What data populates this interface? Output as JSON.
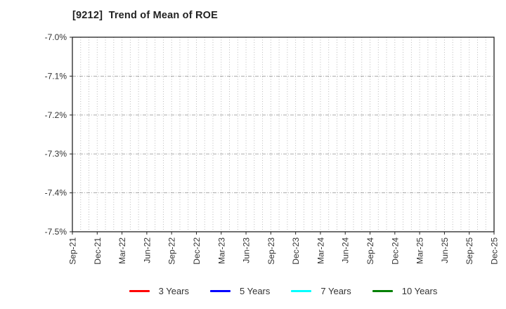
{
  "chart_data": {
    "type": "line",
    "title": "[9212]  Trend of Mean of ROE",
    "ylabel": "",
    "xlabel": "",
    "y_tick_labels": [
      "-7.0%",
      "-7.1%",
      "-7.2%",
      "-7.3%",
      "-7.4%",
      "-7.5%"
    ],
    "ylim": [
      -7.5,
      -7.0
    ],
    "x_tick_labels": [
      "Sep-21",
      "Dec-21",
      "Mar-22",
      "Jun-22",
      "Sep-22",
      "Dec-22",
      "Mar-23",
      "Jun-23",
      "Sep-23",
      "Dec-23",
      "Mar-24",
      "Jun-24",
      "Sep-24",
      "Dec-24",
      "Mar-25",
      "Jun-25",
      "Sep-25",
      "Dec-25"
    ],
    "x_months_per_tick": 3,
    "x_total_month_intervals": 51,
    "grid": true,
    "legend_position": "bottom-center",
    "series": [
      {
        "name": "3 Years",
        "color": "#ff0000",
        "values": []
      },
      {
        "name": "5 Years",
        "color": "#0000ff",
        "values": []
      },
      {
        "name": "7 Years",
        "color": "#00ffff",
        "values": []
      },
      {
        "name": "10 Years",
        "color": "#008000",
        "values": []
      }
    ]
  },
  "colors": {
    "axis_border": "#222222",
    "tick_mark": "#222222",
    "grid_vertical": "#b5b5b5",
    "grid_horizontal": "#a0a0a0",
    "title_text": "#222222",
    "tick_text": "#333333",
    "legend_text": "#333333",
    "background": "#ffffff"
  }
}
